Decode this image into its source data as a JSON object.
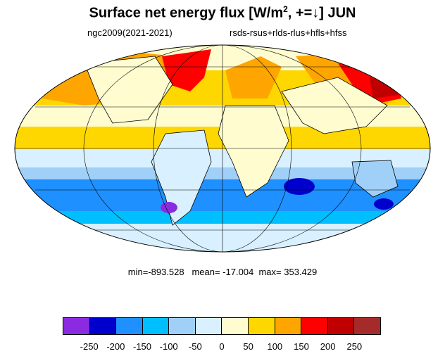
{
  "title": {
    "prefix": "Surface net energy flux [W/m",
    "superscript": "2",
    "suffix": ", +=↓] JUN"
  },
  "subtitle_left": "ngc2009(2021-2021)",
  "subtitle_right": "rsds-rsus+rlds-rlus+hfls+hfss",
  "stats": "min=-893.528   mean= -17.004  max= 353.429",
  "colorbar": {
    "colors": [
      "#8a2be2",
      "#0000cd",
      "#1e90ff",
      "#00bfff",
      "#a0d0f8",
      "#d8f0ff",
      "#fffdd0",
      "#ffd700",
      "#ffa500",
      "#ff0000",
      "#c00000",
      "#a52a2a"
    ],
    "ticks": [
      "-250",
      "-200",
      "-150",
      "-100",
      "-50",
      "0",
      "50",
      "100",
      "150",
      "200",
      "250"
    ]
  },
  "map_colors": {
    "background": "#d8f0ff",
    "ocean_south_mid": "#a0d0f8",
    "ocean_south_deep": "#1e90ff",
    "ocean_south_extreme": "#0000cd",
    "tropics_warm": "#fffdd0",
    "subtropics": "#ffd700",
    "north_warm": "#ffa500",
    "north_hot": "#ff0000",
    "antarctica": "#d8f0ff"
  }
}
